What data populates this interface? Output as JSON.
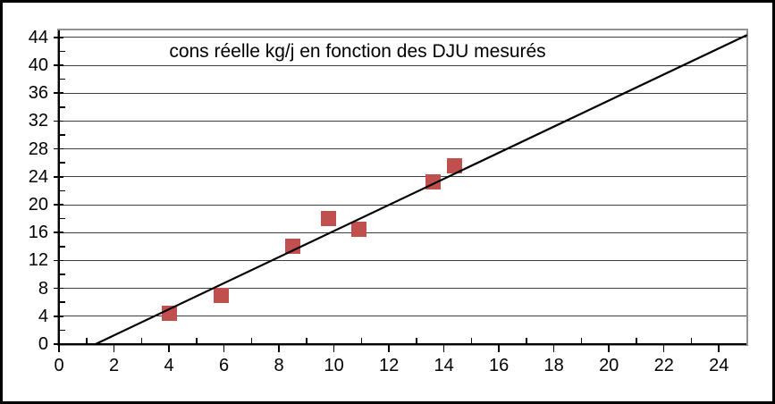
{
  "chart": {
    "colors": {
      "marker_fill": "#C0504D",
      "trend_line": "#000000",
      "gridline": "#3d3d3d",
      "plot_border": "#919191",
      "axis": "#000000",
      "frame": "#000000",
      "background": "#FFFFFF",
      "text": "#000000"
    }
  },
  "chart_data": {
    "type": "scatter",
    "title": "cons réelle kg/j en fonction des DJU mesurés",
    "xlabel": "",
    "ylabel": "",
    "xlim": [
      0,
      25
    ],
    "ylim": [
      0,
      45
    ],
    "x_major_ticks": [
      0,
      2,
      4,
      6,
      8,
      10,
      12,
      14,
      16,
      18,
      20,
      22,
      24
    ],
    "x_minor_ticks": [
      1,
      3,
      5,
      7,
      9,
      11,
      13,
      15,
      17,
      19,
      21,
      23
    ],
    "y_major_ticks": [
      0,
      4,
      8,
      12,
      16,
      20,
      24,
      28,
      32,
      36,
      40,
      44
    ],
    "y_minor_ticks": [
      2,
      6,
      10,
      14,
      18,
      22,
      26,
      30,
      34,
      38,
      42
    ],
    "grid": "horizontal-only",
    "legend": "none",
    "series": [
      {
        "name": "cons réelle kg/j",
        "marker": "square",
        "points": [
          {
            "x": 4.0,
            "y": 4.4
          },
          {
            "x": 5.9,
            "y": 7.0
          },
          {
            "x": 8.5,
            "y": 14.1
          },
          {
            "x": 9.8,
            "y": 18.0
          },
          {
            "x": 10.9,
            "y": 16.5
          },
          {
            "x": 13.6,
            "y": 23.3
          },
          {
            "x": 14.4,
            "y": 25.6
          }
        ]
      }
    ],
    "trend_line": {
      "x1": 1.33,
      "y1": 0,
      "x2": 25,
      "y2": 44.3
    }
  }
}
